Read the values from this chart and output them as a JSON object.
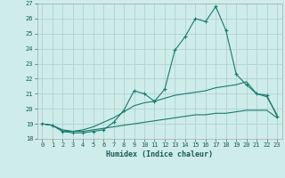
{
  "xlabel": "Humidex (Indice chaleur)",
  "ylabel": "",
  "bg_color": "#ceecea",
  "grid_color": "#b0d4d0",
  "line_color": "#1a7a6e",
  "xlim": [
    -0.5,
    23.5
  ],
  "ylim": [
    18,
    27
  ],
  "xticks": [
    0,
    1,
    2,
    3,
    4,
    5,
    6,
    7,
    8,
    9,
    10,
    11,
    12,
    13,
    14,
    15,
    16,
    17,
    18,
    19,
    20,
    21,
    22,
    23
  ],
  "yticks": [
    18,
    19,
    20,
    21,
    22,
    23,
    24,
    25,
    26,
    27
  ],
  "line1_x": [
    0,
    1,
    2,
    3,
    4,
    5,
    6,
    7,
    8,
    9,
    10,
    11,
    12,
    13,
    14,
    15,
    16,
    17,
    18,
    19,
    20,
    21,
    22,
    23
  ],
  "line1_y": [
    19.0,
    18.9,
    18.5,
    18.4,
    18.4,
    18.5,
    18.6,
    19.1,
    19.9,
    21.2,
    21.0,
    20.5,
    21.3,
    23.9,
    24.8,
    26.0,
    25.8,
    26.8,
    25.2,
    22.3,
    21.6,
    21.0,
    20.9,
    19.5
  ],
  "line2_x": [
    0,
    1,
    2,
    3,
    4,
    5,
    6,
    7,
    8,
    9,
    10,
    11,
    12,
    13,
    14,
    15,
    16,
    17,
    18,
    19,
    20,
    21,
    22,
    23
  ],
  "line2_y": [
    19.0,
    18.9,
    18.6,
    18.5,
    18.6,
    18.8,
    19.1,
    19.4,
    19.8,
    20.2,
    20.4,
    20.5,
    20.7,
    20.9,
    21.0,
    21.1,
    21.2,
    21.4,
    21.5,
    21.6,
    21.8,
    21.0,
    20.8,
    19.6
  ],
  "line3_x": [
    0,
    1,
    2,
    3,
    4,
    5,
    6,
    7,
    8,
    9,
    10,
    11,
    12,
    13,
    14,
    15,
    16,
    17,
    18,
    19,
    20,
    21,
    22,
    23
  ],
  "line3_y": [
    19.0,
    18.9,
    18.5,
    18.5,
    18.5,
    18.6,
    18.7,
    18.8,
    18.9,
    19.0,
    19.1,
    19.2,
    19.3,
    19.4,
    19.5,
    19.6,
    19.6,
    19.7,
    19.7,
    19.8,
    19.9,
    19.9,
    19.9,
    19.4
  ]
}
